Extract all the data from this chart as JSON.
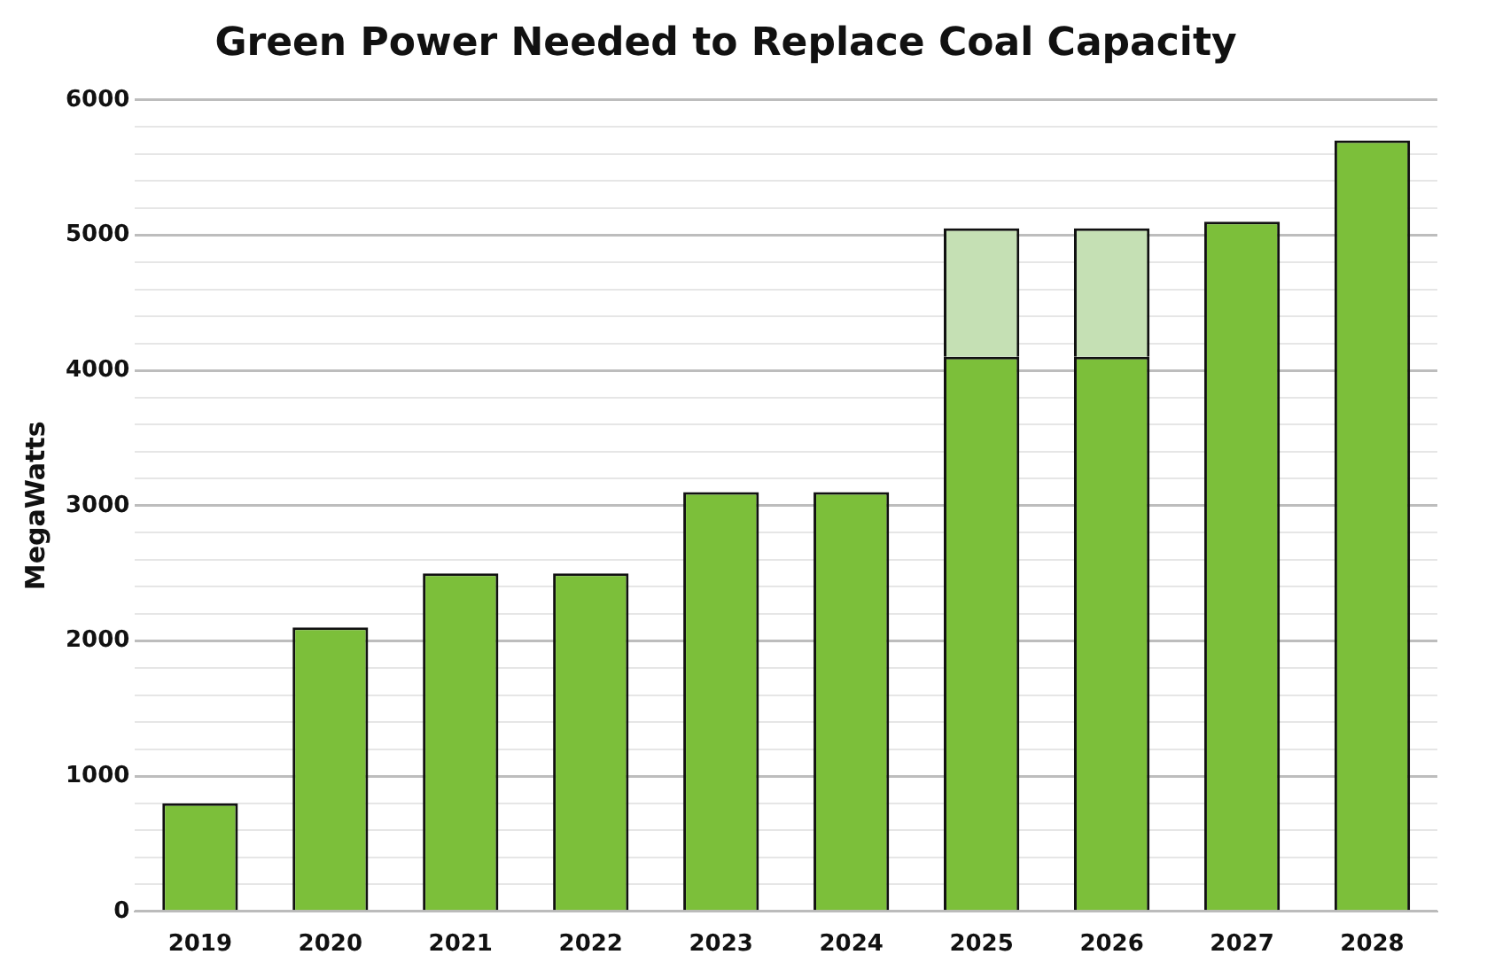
{
  "chart_data": {
    "type": "bar",
    "title": "Green Power Needed to Replace Coal Capacity",
    "ylabel": "MegaWatts",
    "categories": [
      "2019",
      "2020",
      "2021",
      "2022",
      "2023",
      "2024",
      "2025",
      "2026",
      "2027",
      "2028"
    ],
    "stacked": true,
    "series": [
      {
        "color": "#7cbf3a",
        "values": [
          800,
          2100,
          2500,
          2500,
          3100,
          3100,
          4100,
          4100,
          5100,
          5700
        ]
      },
      {
        "color": "#c5e0b4",
        "values": [
          null,
          null,
          null,
          null,
          null,
          null,
          950,
          950,
          null,
          null
        ]
      }
    ],
    "ylim": [
      0,
      6000
    ],
    "yticks": [
      0,
      {
        "value": 200,
        "label": null
      },
      {
        "value": 400,
        "label": null
      },
      {
        "value": 600,
        "label": null
      },
      {
        "value": 800,
        "label": null
      },
      1000,
      {
        "value": 1200,
        "label": null
      },
      {
        "value": 1400,
        "label": null
      },
      {
        "value": 1600,
        "label": null
      },
      {
        "value": 1800,
        "label": null
      },
      2000,
      {
        "value": 2200,
        "label": null
      },
      {
        "value": 2400,
        "label": null
      },
      {
        "value": 2600,
        "label": null
      },
      {
        "value": 2800,
        "label": null
      },
      3000,
      {
        "value": 3200,
        "label": null
      },
      {
        "value": 3400,
        "label": null
      },
      {
        "value": 3600,
        "label": null
      },
      {
        "value": 3800,
        "label": null
      },
      4000,
      {
        "value": 4200,
        "label": null
      },
      {
        "value": 4400,
        "label": null
      },
      {
        "value": 4600,
        "label": null
      },
      {
        "value": 4800,
        "label": null
      },
      5000,
      {
        "value": 5200,
        "label": null
      },
      {
        "value": 5400,
        "label": null
      },
      {
        "value": 5600,
        "label": null
      },
      {
        "value": 5800,
        "label": null
      },
      6000
    ],
    "grid": "y",
    "legend": false
  }
}
